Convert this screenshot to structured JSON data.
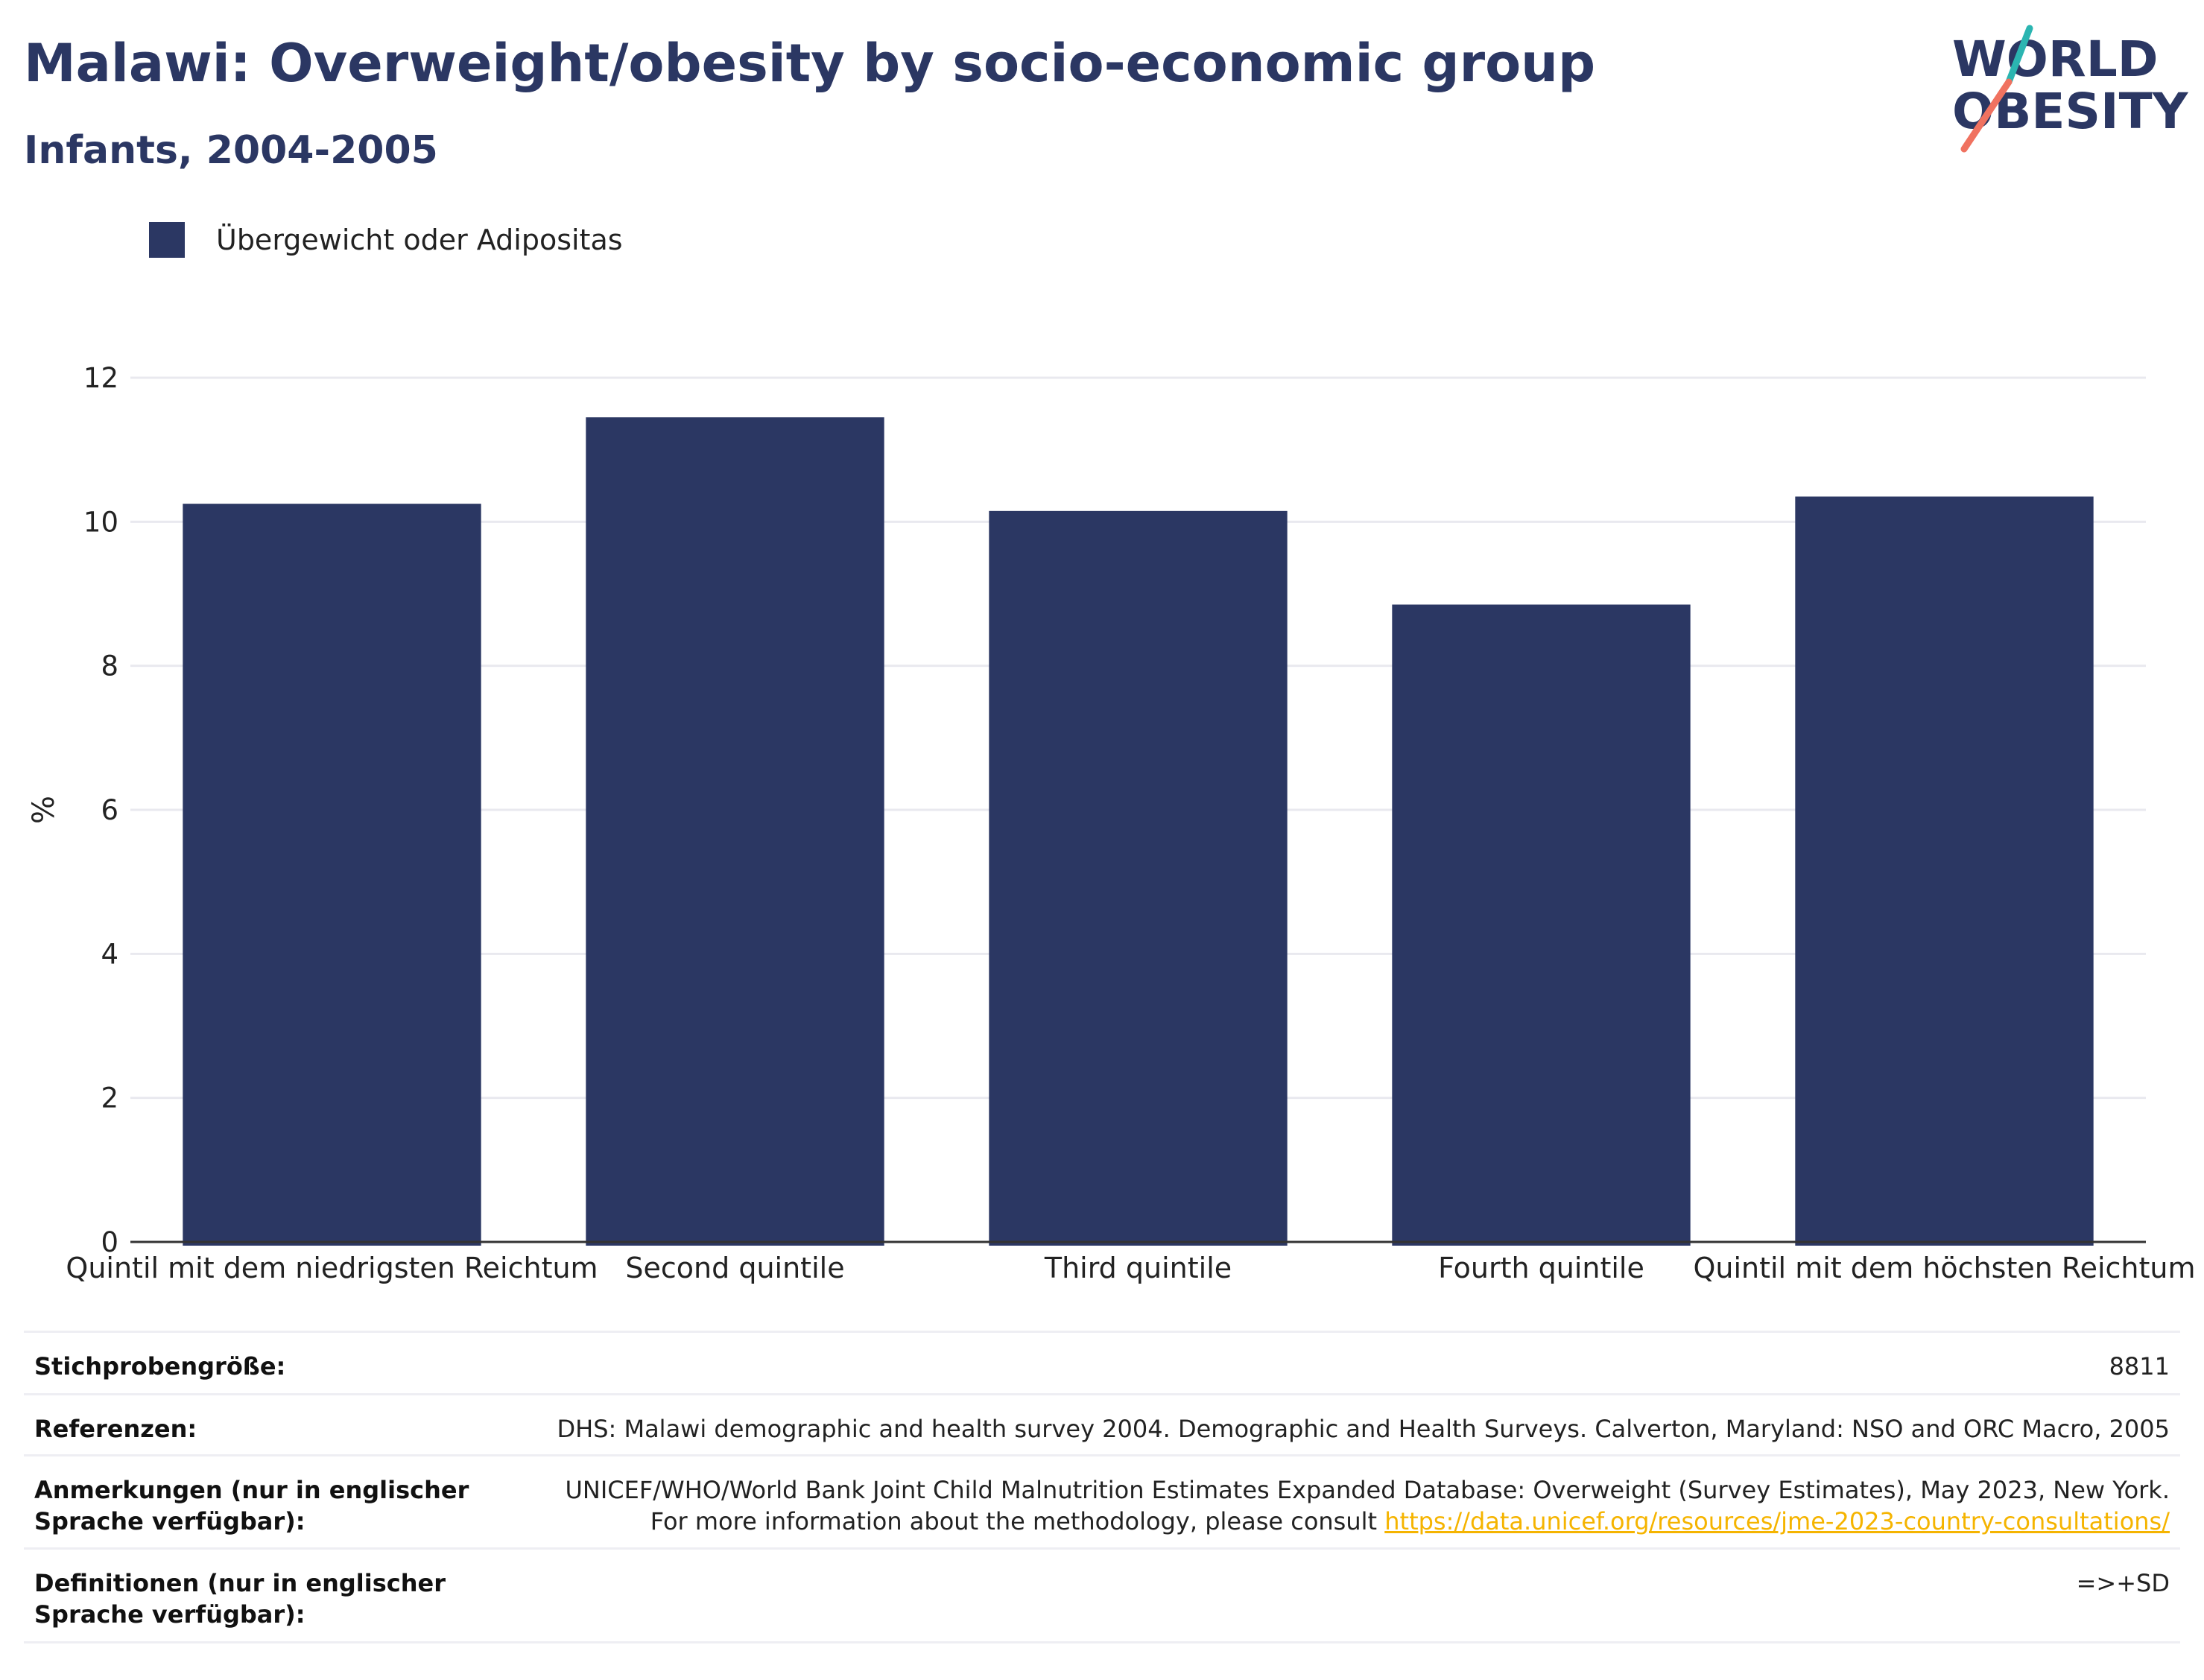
{
  "header": {
    "title": "Malawi: Overweight/obesity by socio-economic group",
    "subtitle": "Infants, 2004-2005"
  },
  "logo": {
    "line1": "WORLD",
    "line2": "OBESITY",
    "colors": {
      "text": "#2b3763",
      "teal": "#2bb5b1",
      "coral": "#f07260"
    }
  },
  "chart_data": {
    "type": "bar",
    "categories": [
      "Quintil mit dem niedrigsten Reichtum",
      "Second quintile",
      "Third quintile",
      "Fourth quintile",
      "Quintil mit dem höchsten Reichtum"
    ],
    "series": [
      {
        "name": "Übergewicht oder Adipositas",
        "values": [
          10.25,
          11.45,
          10.15,
          8.85,
          10.35
        ],
        "color": "#2b3763"
      }
    ],
    "ylabel": "%",
    "xlabel": "",
    "ylim": [
      0,
      12
    ],
    "yticks": [
      0,
      2,
      4,
      6,
      8,
      10,
      12
    ],
    "grid": true,
    "legend": "top-left"
  },
  "info_table": [
    {
      "label": "Stichprobengröße:",
      "value": "8811"
    },
    {
      "label": "Referenzen:",
      "value": "DHS: Malawi demographic and health survey 2004. Demographic and Health Surveys. Calverton, Maryland: NSO and ORC Macro, 2005"
    },
    {
      "label": "Anmerkungen (nur in englischer Sprache verfügbar):",
      "value": "UNICEF/WHO/World Bank Joint Child Malnutrition Estimates Expanded Database: Overweight (Survey Estimates), May 2023, New York. For more information about the methodology, please consult ",
      "link": "https://data.unicef.org/resources/jme-2023-country-consultations/"
    },
    {
      "label": "Definitionen (nur in englischer Sprache verfügbar):",
      "value": "=>+SD"
    }
  ]
}
